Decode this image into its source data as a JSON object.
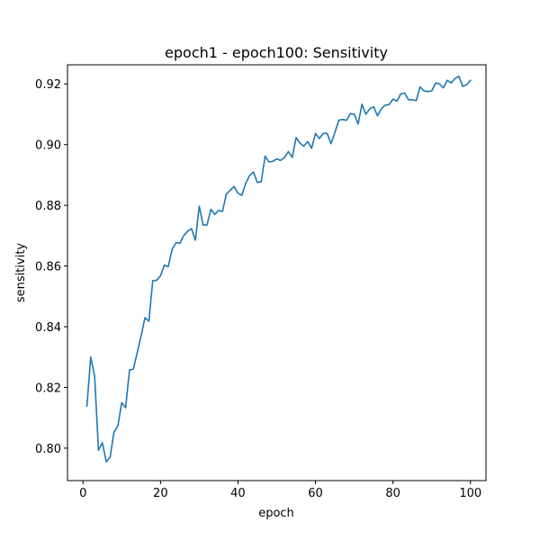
{
  "chart_data": {
    "type": "line",
    "title": "epoch1 - epoch100: Sensitivity",
    "xlabel": "epoch",
    "ylabel": "sensitivity",
    "xlim": [
      -4,
      104
    ],
    "ylim": [
      0.7893,
      0.9263
    ],
    "xticks": [
      0,
      20,
      40,
      60,
      80,
      100
    ],
    "xtick_labels": [
      "0",
      "20",
      "40",
      "60",
      "80",
      "100"
    ],
    "yticks": [
      0.8,
      0.82,
      0.84,
      0.86,
      0.88,
      0.9,
      0.92
    ],
    "ytick_labels": [
      "0.80",
      "0.82",
      "0.84",
      "0.86",
      "0.88",
      "0.90",
      "0.92"
    ],
    "grid": false,
    "line_color": "#1f77b4",
    "series": [
      {
        "x": [
          1,
          2,
          3,
          4,
          5,
          6,
          7,
          8,
          9,
          10,
          11,
          12,
          13,
          14,
          15,
          16,
          17,
          18,
          19,
          20,
          21,
          22,
          23,
          24,
          25,
          26,
          27,
          28,
          29,
          30,
          31,
          32,
          33,
          34,
          35,
          36,
          37,
          38,
          39,
          40,
          41,
          42,
          43,
          44,
          45,
          46,
          47,
          48,
          49,
          50,
          51,
          52,
          53,
          54,
          55,
          56,
          57,
          58,
          59,
          60,
          61,
          62,
          63,
          64,
          65,
          66,
          67,
          68,
          69,
          70,
          71,
          72,
          73,
          74,
          75,
          76,
          77,
          78,
          79,
          80,
          81,
          82,
          83,
          84,
          85,
          86,
          87,
          88,
          89,
          90,
          91,
          92,
          93,
          94,
          95,
          96,
          97,
          98,
          99,
          100
        ],
        "values": [
          0.8138,
          0.83,
          0.8238,
          0.7993,
          0.8018,
          0.7955,
          0.797,
          0.8053,
          0.8073,
          0.815,
          0.8133,
          0.8258,
          0.826,
          0.8315,
          0.837,
          0.843,
          0.8418,
          0.8552,
          0.8553,
          0.8568,
          0.8603,
          0.8598,
          0.8655,
          0.8677,
          0.8675,
          0.87,
          0.8715,
          0.8723,
          0.8685,
          0.8797,
          0.8735,
          0.8735,
          0.8787,
          0.877,
          0.8783,
          0.878,
          0.8837,
          0.885,
          0.8862,
          0.884,
          0.8833,
          0.8873,
          0.8898,
          0.891,
          0.8875,
          0.8878,
          0.8962,
          0.8943,
          0.8945,
          0.8953,
          0.8948,
          0.8958,
          0.8977,
          0.8958,
          0.9023,
          0.9005,
          0.8995,
          0.901,
          0.8988,
          0.9037,
          0.902,
          0.9037,
          0.9037,
          0.9003,
          0.904,
          0.908,
          0.9083,
          0.908,
          0.9102,
          0.91,
          0.9068,
          0.9133,
          0.91,
          0.9118,
          0.9125,
          0.9095,
          0.9118,
          0.913,
          0.9132,
          0.915,
          0.9143,
          0.9167,
          0.917,
          0.9148,
          0.9148,
          0.9145,
          0.919,
          0.9177,
          0.9175,
          0.9177,
          0.9203,
          0.92,
          0.9187,
          0.9212,
          0.9203,
          0.9218,
          0.9225,
          0.9192,
          0.9197,
          0.9212
        ]
      }
    ]
  }
}
